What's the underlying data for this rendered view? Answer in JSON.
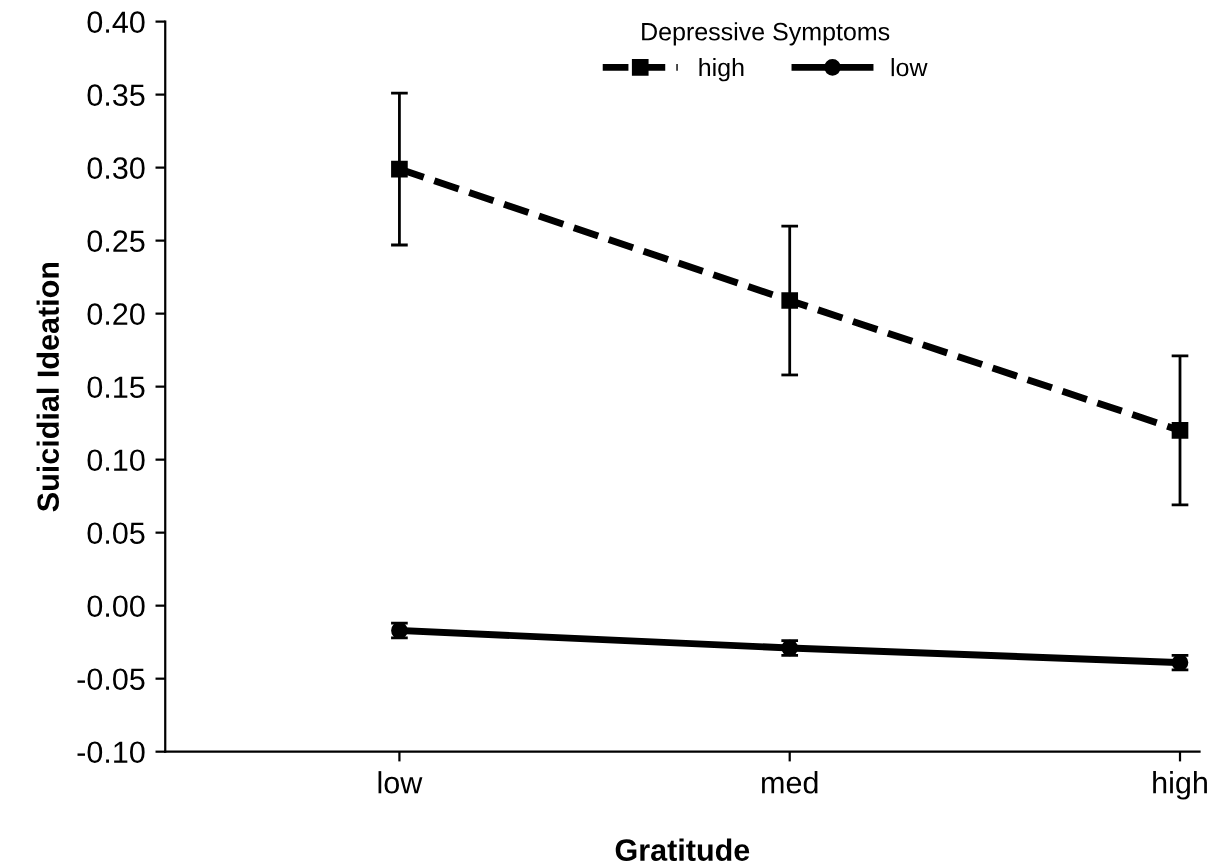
{
  "chart_data": {
    "type": "line",
    "xlabel": "Gratitude",
    "ylabel": "Suicidial Ideation",
    "legend_title": "Depressive Symptoms",
    "legend": "top",
    "categories": [
      "low",
      "med",
      "high"
    ],
    "series": [
      {
        "name": "high",
        "color": "#000000",
        "values": [
          0.299,
          0.209,
          0.12
        ],
        "errors": [
          0.052,
          0.051,
          0.051
        ],
        "marker": "square",
        "line_style": "dashed"
      },
      {
        "name": "low",
        "color": "#000000",
        "values": [
          -0.017,
          -0.029,
          -0.039
        ],
        "errors": [
          0.005,
          0.005,
          0.005
        ],
        "marker": "circle",
        "line_style": "solid"
      }
    ],
    "ylim": [
      -0.1,
      0.4
    ],
    "yticks": [
      {
        "value": -0.1,
        "label": "-0.10"
      },
      {
        "value": -0.05,
        "label": "-0.05"
      },
      {
        "value": 0,
        "label": "0.00"
      },
      {
        "value": 0.05,
        "label": "0.05"
      },
      {
        "value": 0.1,
        "label": "0.10"
      },
      {
        "value": 0.15,
        "label": "0.15"
      },
      {
        "value": 0.2,
        "label": "0.20"
      },
      {
        "value": 0.25,
        "label": "0.25"
      },
      {
        "value": 0.3,
        "label": "0.30"
      },
      {
        "value": 0.35,
        "label": "0.35"
      },
      {
        "value": 0.4,
        "label": "0.40"
      }
    ],
    "grid": false
  }
}
